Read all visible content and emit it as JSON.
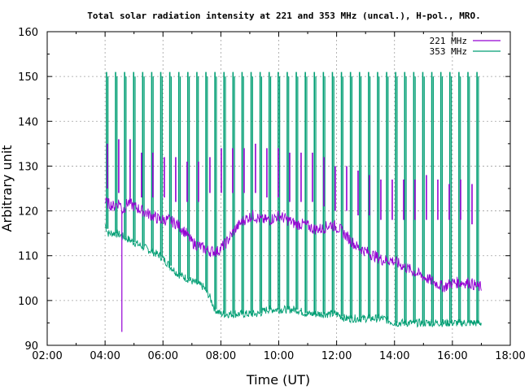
{
  "chart_data": {
    "type": "line",
    "title": "Total solar radiation intensity at 221 and 353 MHz (uncal.), H-pol., MRO.",
    "xlabel": "Time (UT)",
    "ylabel": "Arbitrary unit",
    "xlim": [
      2,
      18
    ],
    "ylim": [
      90,
      160
    ],
    "x_ticks": [
      "02:00",
      "04:00",
      "06:00",
      "08:00",
      "10:00",
      "12:00",
      "14:00",
      "16:00",
      "18:00"
    ],
    "y_ticks": [
      "90",
      "100",
      "110",
      "120",
      "130",
      "140",
      "150",
      "160"
    ],
    "grid": true,
    "legend_position": "top-right",
    "series": [
      {
        "name": "221 MHz",
        "color": "#9400d3",
        "points": [
          [
            4.0,
            122
          ],
          [
            4.3,
            121
          ],
          [
            4.5,
            122
          ],
          [
            4.6,
            120
          ],
          [
            4.8,
            122
          ],
          [
            5.0,
            121
          ],
          [
            5.3,
            120
          ],
          [
            5.6,
            119
          ],
          [
            5.9,
            118
          ],
          [
            6.2,
            118
          ],
          [
            6.5,
            117
          ],
          [
            6.8,
            115
          ],
          [
            7.0,
            113
          ],
          [
            7.3,
            112
          ],
          [
            7.6,
            111
          ],
          [
            7.9,
            111
          ],
          [
            8.2,
            113
          ],
          [
            8.5,
            116
          ],
          [
            8.8,
            118
          ],
          [
            9.1,
            119
          ],
          [
            9.4,
            118
          ],
          [
            9.7,
            118
          ],
          [
            10.0,
            119
          ],
          [
            10.3,
            118
          ],
          [
            10.6,
            117
          ],
          [
            10.9,
            117
          ],
          [
            11.2,
            116
          ],
          [
            11.5,
            116
          ],
          [
            11.8,
            117
          ],
          [
            12.1,
            116
          ],
          [
            12.4,
            114
          ],
          [
            12.7,
            112
          ],
          [
            13.0,
            111
          ],
          [
            13.3,
            110
          ],
          [
            13.6,
            109
          ],
          [
            13.9,
            109
          ],
          [
            14.2,
            108
          ],
          [
            14.5,
            107
          ],
          [
            14.8,
            106
          ],
          [
            15.1,
            105
          ],
          [
            15.4,
            104
          ],
          [
            15.7,
            103
          ],
          [
            16.0,
            104
          ],
          [
            16.3,
            104
          ],
          [
            16.6,
            104
          ],
          [
            16.9,
            103
          ],
          [
            17.0,
            103
          ]
        ],
        "spikes_high": [
          135,
          136,
          136,
          133,
          133,
          132,
          132,
          131,
          131,
          132,
          134,
          134,
          134,
          135,
          134,
          134,
          133,
          133,
          133,
          132,
          130,
          130,
          129,
          128,
          127,
          127,
          127,
          127,
          128,
          127,
          126,
          127,
          126
        ],
        "spikes_low": [
          125,
          124,
          123,
          123,
          123,
          123,
          122,
          122,
          122,
          124,
          124,
          124,
          124,
          124,
          123,
          123,
          122,
          122,
          122,
          121,
          120,
          120,
          119,
          119,
          118,
          118,
          118,
          118,
          118,
          118,
          118,
          118,
          117
        ],
        "dip": [
          4.58,
          93
        ]
      },
      {
        "name": "353 MHz",
        "color": "#009e73",
        "points": [
          [
            4.0,
            117
          ],
          [
            4.1,
            115
          ],
          [
            4.4,
            115
          ],
          [
            4.7,
            114
          ],
          [
            5.0,
            113
          ],
          [
            5.3,
            112
          ],
          [
            5.6,
            111
          ],
          [
            5.9,
            110
          ],
          [
            6.2,
            108
          ],
          [
            6.5,
            106
          ],
          [
            6.8,
            105
          ],
          [
            7.1,
            104
          ],
          [
            7.4,
            103
          ],
          [
            7.6,
            101
          ],
          [
            7.8,
            98
          ],
          [
            8.0,
            97
          ],
          [
            8.3,
            97
          ],
          [
            8.6,
            97
          ],
          [
            9.0,
            97
          ],
          [
            9.3,
            97
          ],
          [
            9.6,
            98
          ],
          [
            10.0,
            98
          ],
          [
            10.3,
            98
          ],
          [
            10.6,
            98
          ],
          [
            11.0,
            97
          ],
          [
            11.3,
            97
          ],
          [
            11.6,
            97
          ],
          [
            12.0,
            97
          ],
          [
            12.3,
            96
          ],
          [
            12.6,
            96
          ],
          [
            13.0,
            96
          ],
          [
            13.3,
            96
          ],
          [
            13.6,
            96
          ],
          [
            14.0,
            95
          ],
          [
            14.3,
            95
          ],
          [
            14.6,
            95
          ],
          [
            15.0,
            95
          ],
          [
            15.3,
            95
          ],
          [
            15.6,
            95
          ],
          [
            16.0,
            95
          ],
          [
            16.3,
            95
          ],
          [
            16.6,
            95
          ],
          [
            17.0,
            95
          ]
        ],
        "spike_top": [
          151,
          151,
          151,
          151,
          151,
          151,
          151,
          151,
          151,
          151,
          151,
          151,
          151,
          151,
          151,
          151,
          151,
          151,
          151,
          151,
          151,
          151,
          151,
          151,
          151,
          151,
          151,
          151,
          151,
          151,
          151,
          151,
          151,
          151,
          151,
          151,
          151,
          151,
          151,
          151,
          151,
          151
        ]
      }
    ]
  }
}
